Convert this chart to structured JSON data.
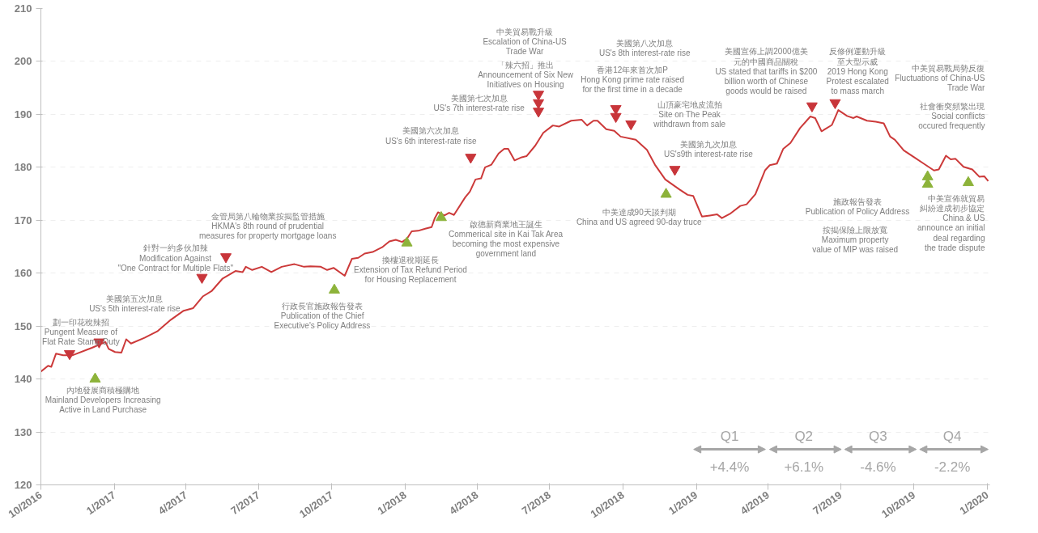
{
  "chart_data": {
    "type": "line",
    "x": [
      "2016-10-01",
      "2016-10-10",
      "2016-10-14",
      "2016-10-20",
      "2016-10-29",
      "2016-11-10",
      "2016-12-04",
      "2016-12-21",
      "2016-12-25",
      "2017-01-02",
      "2017-01-10",
      "2017-01-16",
      "2017-01-22",
      "2017-02-08",
      "2017-02-24",
      "2017-03-13",
      "2017-03-29",
      "2017-04-10",
      "2017-04-22",
      "2017-05-03",
      "2017-05-17",
      "2017-06-02",
      "2017-06-11",
      "2017-06-15",
      "2017-06-23",
      "2017-07-05",
      "2017-07-17",
      "2017-07-30",
      "2017-08-15",
      "2017-08-27",
      "2017-09-04",
      "2017-09-17",
      "2017-09-25",
      "2017-10-03",
      "2017-10-17",
      "2017-10-26",
      "2017-11-03",
      "2017-11-11",
      "2017-11-21",
      "2017-12-03",
      "2017-12-12",
      "2017-12-20",
      "2017-12-28",
      "2018-01-03",
      "2018-01-09",
      "2018-01-17",
      "2018-01-26",
      "2018-02-03",
      "2018-02-07",
      "2018-02-11",
      "2018-02-19",
      "2018-02-25",
      "2018-03-03",
      "2018-03-17",
      "2018-03-23",
      "2018-03-30",
      "2018-04-06",
      "2018-04-11",
      "2018-04-19",
      "2018-04-28",
      "2018-05-05",
      "2018-05-10",
      "2018-05-18",
      "2018-05-27",
      "2018-06-02",
      "2018-06-13",
      "2018-06-23",
      "2018-07-05",
      "2018-07-13",
      "2018-07-28",
      "2018-08-10",
      "2018-08-17",
      "2018-08-25",
      "2018-08-30",
      "2018-09-10",
      "2018-09-20",
      "2018-09-28",
      "2018-10-17",
      "2018-10-31",
      "2018-11-10",
      "2018-11-23",
      "2018-12-11",
      "2018-12-21",
      "2018-12-28",
      "2019-01-08",
      "2019-01-18",
      "2019-01-27",
      "2019-02-02",
      "2019-02-12",
      "2019-02-25",
      "2019-03-05",
      "2019-03-16",
      "2019-03-28",
      "2019-04-03",
      "2019-04-12",
      "2019-04-20",
      "2019-04-29",
      "2019-05-11",
      "2019-05-24",
      "2019-05-30",
      "2019-06-07",
      "2019-06-20",
      "2019-06-28",
      "2019-07-09",
      "2019-07-17",
      "2019-07-21",
      "2019-08-03",
      "2019-08-14",
      "2019-08-24",
      "2019-09-01",
      "2019-09-07",
      "2019-09-18",
      "2019-10-01",
      "2019-10-13",
      "2019-10-26",
      "2019-11-01",
      "2019-11-10",
      "2019-11-16",
      "2019-11-22",
      "2019-12-02",
      "2019-12-13",
      "2019-12-22",
      "2019-12-28",
      "2020-01-02"
    ],
    "series": [
      {
        "color": "#cc3a3a",
        "values": [
          141.4,
          142.5,
          142.3,
          144.8,
          144.5,
          144.5,
          145.9,
          147.0,
          145.7,
          145.1,
          145.0,
          147.5,
          146.7,
          147.8,
          149.0,
          151.2,
          152.9,
          153.4,
          155.6,
          156.6,
          159.0,
          160.4,
          160.2,
          161.2,
          160.6,
          161.2,
          160.2,
          161.2,
          161.7,
          161.2,
          161.3,
          161.2,
          160.6,
          161.0,
          159.5,
          162.7,
          162.9,
          163.7,
          164.0,
          164.9,
          166.0,
          166.3,
          165.9,
          166.5,
          167.9,
          168.0,
          168.4,
          168.7,
          170.4,
          171.5,
          170.9,
          171.4,
          171.0,
          174.3,
          175.4,
          177.7,
          177.9,
          180.0,
          180.5,
          182.6,
          183.5,
          183.5,
          181.3,
          181.9,
          182.1,
          184.1,
          186.5,
          187.9,
          187.7,
          188.8,
          189.0,
          187.9,
          188.8,
          188.8,
          187.2,
          186.9,
          185.8,
          185.2,
          183.3,
          180.5,
          177.7,
          175.8,
          174.8,
          174.6,
          170.7,
          170.9,
          171.1,
          170.4,
          171.2,
          172.7,
          173.0,
          174.9,
          179.4,
          180.4,
          180.7,
          183.5,
          184.6,
          187.4,
          189.6,
          189.3,
          186.8,
          188.0,
          190.8,
          189.7,
          189.3,
          189.6,
          188.8,
          188.6,
          188.3,
          185.8,
          185.2,
          183.2,
          181.9,
          180.7,
          179.4,
          179.6,
          182.2,
          181.5,
          181.6,
          180.1,
          179.6,
          178.2,
          178.3,
          177.4
        ]
      },
      {
        "type": "scatter",
        "marker": "triangle",
        "color": "#c8353a",
        "x": [
          "2016-11-06",
          "2016-12-13",
          "2017-04-21",
          "2017-05-21",
          "2018-03-24",
          "2018-06-17",
          "2018-06-17",
          "2018-06-17",
          "2018-09-22",
          "2018-09-22",
          "2018-10-11",
          "2018-12-05",
          "2019-05-26",
          "2019-06-24"
        ],
        "values": [
          144.8,
          147.0,
          159.2,
          163.1,
          181.9,
          193.8,
          192.2,
          190.6,
          191.1,
          189.6,
          188.2,
          179.6,
          191.6,
          192.2
        ]
      },
      {
        "type": "scatter",
        "marker": "triangle",
        "color": "#8db33a",
        "x": [
          "2016-12-08",
          "2017-10-04",
          "2018-01-03",
          "2018-02-15",
          "2018-11-24",
          "2019-10-18",
          "2019-10-18",
          "2019-12-08"
        ],
        "values": [
          140.0,
          156.8,
          165.7,
          170.5,
          174.9,
          178.2,
          176.8,
          177.1
        ]
      }
    ],
    "xlim": [
      "2016-10-01",
      "2020-01-04"
    ],
    "xticks": [
      {
        "value": "2016-10-01",
        "label": "10/2016"
      },
      {
        "value": "2017-01-01",
        "label": "1/2017"
      },
      {
        "value": "2017-04-01",
        "label": "4/2017"
      },
      {
        "value": "2017-07-01",
        "label": "7/2017"
      },
      {
        "value": "2017-10-01",
        "label": "10/2017"
      },
      {
        "value": "2018-01-01",
        "label": "1/2018"
      },
      {
        "value": "2018-04-01",
        "label": "4/2018"
      },
      {
        "value": "2018-07-01",
        "label": "7/2018"
      },
      {
        "value": "2018-10-01",
        "label": "10/2018"
      },
      {
        "value": "2019-01-01",
        "label": "1/2019"
      },
      {
        "value": "2019-04-01",
        "label": "4/2019"
      },
      {
        "value": "2019-07-01",
        "label": "7/2019"
      },
      {
        "value": "2019-10-01",
        "label": "10/2019"
      },
      {
        "value": "2020-01-01",
        "label": "1/2020"
      }
    ],
    "ylim": [
      120,
      210
    ],
    "yticks": [
      120,
      130,
      140,
      150,
      160,
      170,
      180,
      190,
      200,
      210
    ],
    "grid": "y",
    "line_style": "solid",
    "annotations": [
      "劃一印花稅辣招\nPungent Measure of\nFlat Rate Stamp Duty",
      "內地發展商積極購地\nMainland Developers Increasing\nActive in Land Purchase",
      "美國第五次加息\nUS's 5th interest-rate rise",
      "針對一約多伙加辣\nModification Against\n\"One Contract for Multiple Flats\"",
      "金管局第八輪物業按揭監管措施\nHKMA's 8th round of prudential\nmeasures for property mortgage loans",
      "行政長官施政報告發表\nPublication of the Chief\nExecutive's Policy Address",
      "換樓退稅期延長\nExtension of Tax Refund Period\nfor Housing Replacement",
      "啟德新商業地王誕生\nCommerical site in Kai Tak Area\nbecoming the most expensive\ngovernment land",
      "美國第六次加息\nUS's 6th interest-rate rise",
      "美國第七次加息\nUS's 7th interest-rate rise",
      "「辣六招」推出\nAnnouncement of Six New\nInitiatives on Housing",
      "中美貿易戰升級\nEscalation of China-US\nTrade War",
      "美國第八次加息\nUS's 8th interest-rate rise",
      "香港12年來首次加P\nHong Kong prime rate raised\nfor the first time in a decade",
      "山頂豪宅地皮流拍\nSite on The Peak\nwithdrawn from sale",
      "美國第九次加息\nUS's9th interest-rate rise",
      "中美達成90天談判期\nChina and US agreed 90-day truce",
      "美國宣佈上調2000億美元的中國商品關稅\nUS stated that tariffs in $200\nbillion worth of Chinese\ngoods would be raised",
      "反修例運動升級至大型示威\n2019 Hong Kong\nProtest escalated\nto mass march",
      "中美貿易戰局勢反復\nFluctuations of China-US\nTrade War",
      "社會衝突頻繁出現\nSocial conflicts\noccured frequently",
      "施政報告發表\nPublication of Policy Address",
      "按揭保險上限放寬\nMaximum property\nvalue of MIP was raised",
      "中美宣佈就貿易糾紛達成初步協定\nChina & US\nannounce an initial\ndeal regarding\nthe trade dispute",
      "Q1",
      "Q2",
      "Q3",
      "Q4",
      "+4.4%",
      "+6.1%",
      "-4.6%",
      "-2.2%"
    ]
  }
}
